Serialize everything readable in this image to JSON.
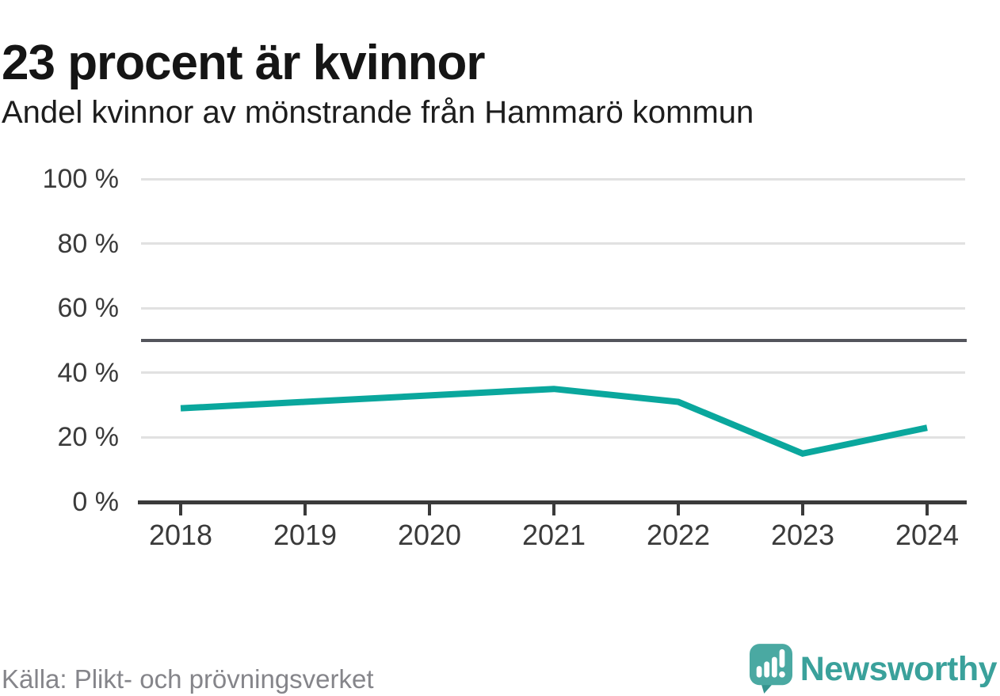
{
  "chart_data": {
    "type": "line",
    "title": "23 procent är kvinnor",
    "subtitle": "Andel kvinnor av mönstrande från Hammarö kommun",
    "x": [
      "2018",
      "2019",
      "2020",
      "2021",
      "2022",
      "2023",
      "2024"
    ],
    "values": [
      29,
      31,
      33,
      35,
      31,
      15,
      23
    ],
    "unit": "%",
    "ylim": [
      0,
      100
    ],
    "yticks": [
      100,
      80,
      60,
      40,
      20,
      0
    ],
    "ytick_labels": [
      "100 %",
      "80 %",
      "60 %",
      "40 %",
      "20 %",
      "0 %"
    ],
    "reference_line_y": 50,
    "grid": "horizontal",
    "legend": "none",
    "colors": {
      "line": "#0aa79d",
      "grid": "#e1e1e1",
      "reference": "#54555c",
      "axis": "#3a3a3a",
      "tick_label": "#3a3a3a"
    }
  },
  "footer": {
    "source": "Källa: Plikt- och prövningsverket",
    "brand": "Newsworthy",
    "brand_color": "#3aa19b",
    "logo_mark_color": "#4aa9a2",
    "logo_tail_color": "#35948e"
  }
}
